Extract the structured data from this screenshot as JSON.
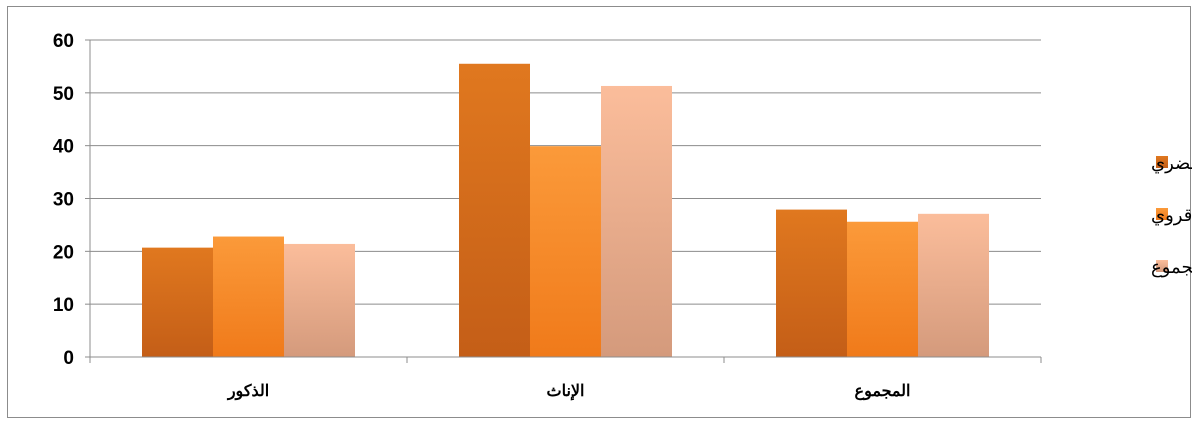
{
  "chart_data": {
    "type": "bar",
    "title": "",
    "xlabel": "",
    "ylabel": "",
    "categories": [
      "الذكور",
      "الإناث",
      "المجموع"
    ],
    "series": [
      {
        "name": "حضري",
        "values": [
          20.7,
          55.5,
          27.9
        ],
        "color": "#c45e17",
        "color_top": "#e0781f"
      },
      {
        "name": "قروي",
        "values": [
          22.8,
          39.9,
          25.6
        ],
        "color": "#f07a1a",
        "color_top": "#fb9a3a"
      },
      {
        "name": "المجموع",
        "values": [
          21.4,
          51.3,
          27.1
        ],
        "color": "#d49a7c",
        "color_top": "#fbbd9b"
      }
    ],
    "ylim": [
      0,
      60
    ],
    "yticks": [
      0,
      10,
      20,
      30,
      40,
      50,
      60
    ],
    "grid": true,
    "legend_position": "right"
  }
}
